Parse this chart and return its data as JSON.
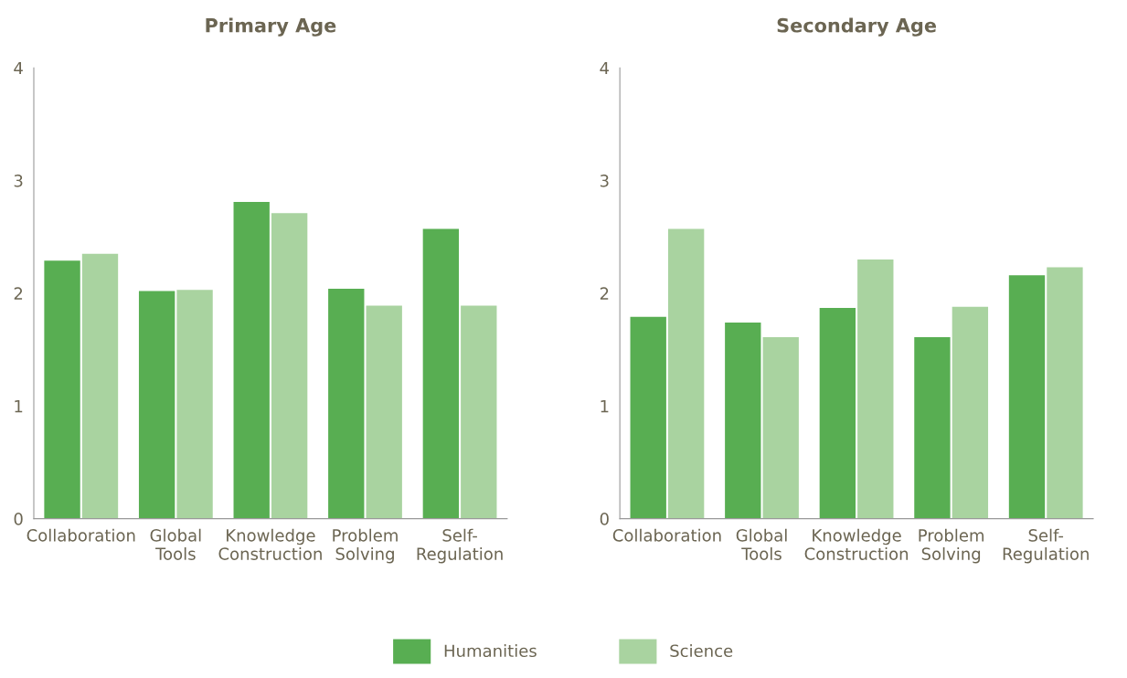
{
  "chart_data": [
    {
      "type": "bar",
      "title": "Primary Age",
      "categories": [
        "Collaboration",
        "Global\nTools",
        "Knowledge\nConstruction",
        "Problem\nSolving",
        "Self-\nRegulation"
      ],
      "ylim": [
        0,
        4
      ],
      "yticks": [
        0,
        1,
        2,
        3,
        4
      ],
      "grid": false,
      "legend": "bottom",
      "series": [
        {
          "name": "Humanities",
          "color": "#58ae52",
          "values": [
            2.29,
            2.02,
            2.81,
            2.04,
            2.57
          ]
        },
        {
          "name": "Science",
          "color": "#a9d3a0",
          "values": [
            2.35,
            2.03,
            2.71,
            1.89,
            1.89
          ]
        }
      ]
    },
    {
      "type": "bar",
      "title": "Secondary Age",
      "categories": [
        "Collaboration",
        "Global\nTools",
        "Knowledge\nConstruction",
        "Problem\nSolving",
        "Self-\nRegulation"
      ],
      "ylim": [
        0,
        4
      ],
      "yticks": [
        0,
        1,
        2,
        3,
        4
      ],
      "grid": false,
      "legend": "bottom",
      "series": [
        {
          "name": "Humanities",
          "color": "#58ae52",
          "values": [
            1.79,
            1.74,
            1.87,
            1.61,
            2.16
          ]
        },
        {
          "name": "Science",
          "color": "#a9d3a0",
          "values": [
            2.57,
            1.61,
            2.3,
            1.88,
            2.23
          ]
        }
      ]
    }
  ]
}
